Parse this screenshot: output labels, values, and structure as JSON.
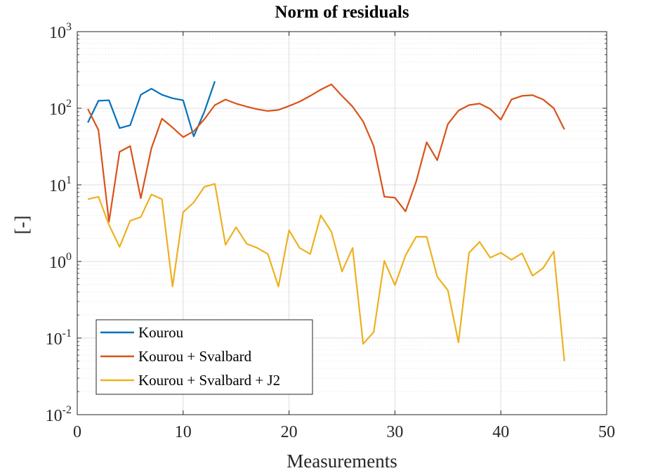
{
  "chart_data": {
    "type": "line",
    "title": "Norm of residuals",
    "xlabel": "Measurements",
    "ylabel": "[-]",
    "xlim": [
      0,
      50
    ],
    "ylim": [
      0.01,
      1000
    ],
    "yscale": "log",
    "grid": true,
    "minor_grid": true,
    "legend_position": "bottom-left",
    "x_ticks": [
      {
        "value": 0,
        "label": "0"
      },
      {
        "value": 10,
        "label": "10"
      },
      {
        "value": 20,
        "label": "20"
      },
      {
        "value": 30,
        "label": "30"
      },
      {
        "value": 40,
        "label": "40"
      },
      {
        "value": 50,
        "label": "50"
      }
    ],
    "y_ticks": [
      {
        "value": 0.01,
        "base": "10",
        "exp": "-2"
      },
      {
        "value": 0.1,
        "base": "10",
        "exp": "-1"
      },
      {
        "value": 1,
        "base": "10",
        "exp": "0"
      },
      {
        "value": 10,
        "base": "10",
        "exp": "1"
      },
      {
        "value": 100,
        "base": "10",
        "exp": "2"
      },
      {
        "value": 1000,
        "base": "10",
        "exp": "3"
      }
    ],
    "series": [
      {
        "name": "Kourou",
        "color": "#0072BD",
        "x": [
          1,
          2,
          3,
          4,
          5,
          6,
          7,
          8,
          9,
          10,
          11,
          12,
          13
        ],
        "y": [
          65,
          125,
          127,
          55,
          60,
          150,
          180,
          150,
          135,
          127,
          43,
          90,
          225
        ]
      },
      {
        "name": "Kourou + Svalbard",
        "color": "#D95319",
        "x": [
          1,
          2,
          3,
          4,
          5,
          6,
          7,
          8,
          9,
          10,
          11,
          12,
          13,
          14,
          15,
          16,
          17,
          18,
          19,
          20,
          21,
          22,
          23,
          24,
          25,
          26,
          27,
          28,
          29,
          30,
          31,
          32,
          33,
          34,
          35,
          36,
          37,
          38,
          39,
          40,
          41,
          42,
          43,
          44,
          45,
          46
        ],
        "y": [
          98,
          52,
          3.3,
          27,
          32,
          6.7,
          30,
          73,
          56,
          42,
          50,
          72,
          110,
          130,
          115,
          105,
          97,
          92,
          95,
          107,
          122,
          145,
          175,
          205,
          145,
          105,
          67,
          32,
          7.0,
          6.8,
          4.5,
          11,
          36,
          21,
          62,
          93,
          110,
          115,
          98,
          71,
          130,
          145,
          148,
          130,
          100,
          53
        ]
      },
      {
        "name": "Kourou + Svalbard + J2",
        "color": "#EDB120",
        "x": [
          1,
          2,
          3,
          4,
          5,
          6,
          7,
          8,
          9,
          10,
          11,
          12,
          13,
          14,
          15,
          16,
          17,
          18,
          19,
          20,
          21,
          22,
          23,
          24,
          25,
          26,
          27,
          28,
          29,
          30,
          31,
          32,
          33,
          34,
          35,
          36,
          37,
          38,
          39,
          40,
          41,
          42,
          43,
          44,
          45,
          46
        ],
        "y": [
          6.5,
          7.0,
          3.0,
          1.55,
          3.4,
          3.8,
          7.5,
          6.5,
          0.47,
          4.4,
          5.9,
          9.4,
          10.3,
          1.65,
          2.8,
          1.7,
          1.5,
          1.25,
          0.47,
          2.55,
          1.5,
          1.25,
          4.0,
          2.45,
          0.74,
          1.5,
          0.084,
          0.12,
          1.02,
          0.49,
          1.2,
          2.1,
          2.1,
          0.63,
          0.42,
          0.088,
          1.3,
          1.8,
          1.12,
          1.3,
          1.05,
          1.28,
          0.65,
          0.82,
          1.35,
          0.05
        ]
      }
    ]
  }
}
